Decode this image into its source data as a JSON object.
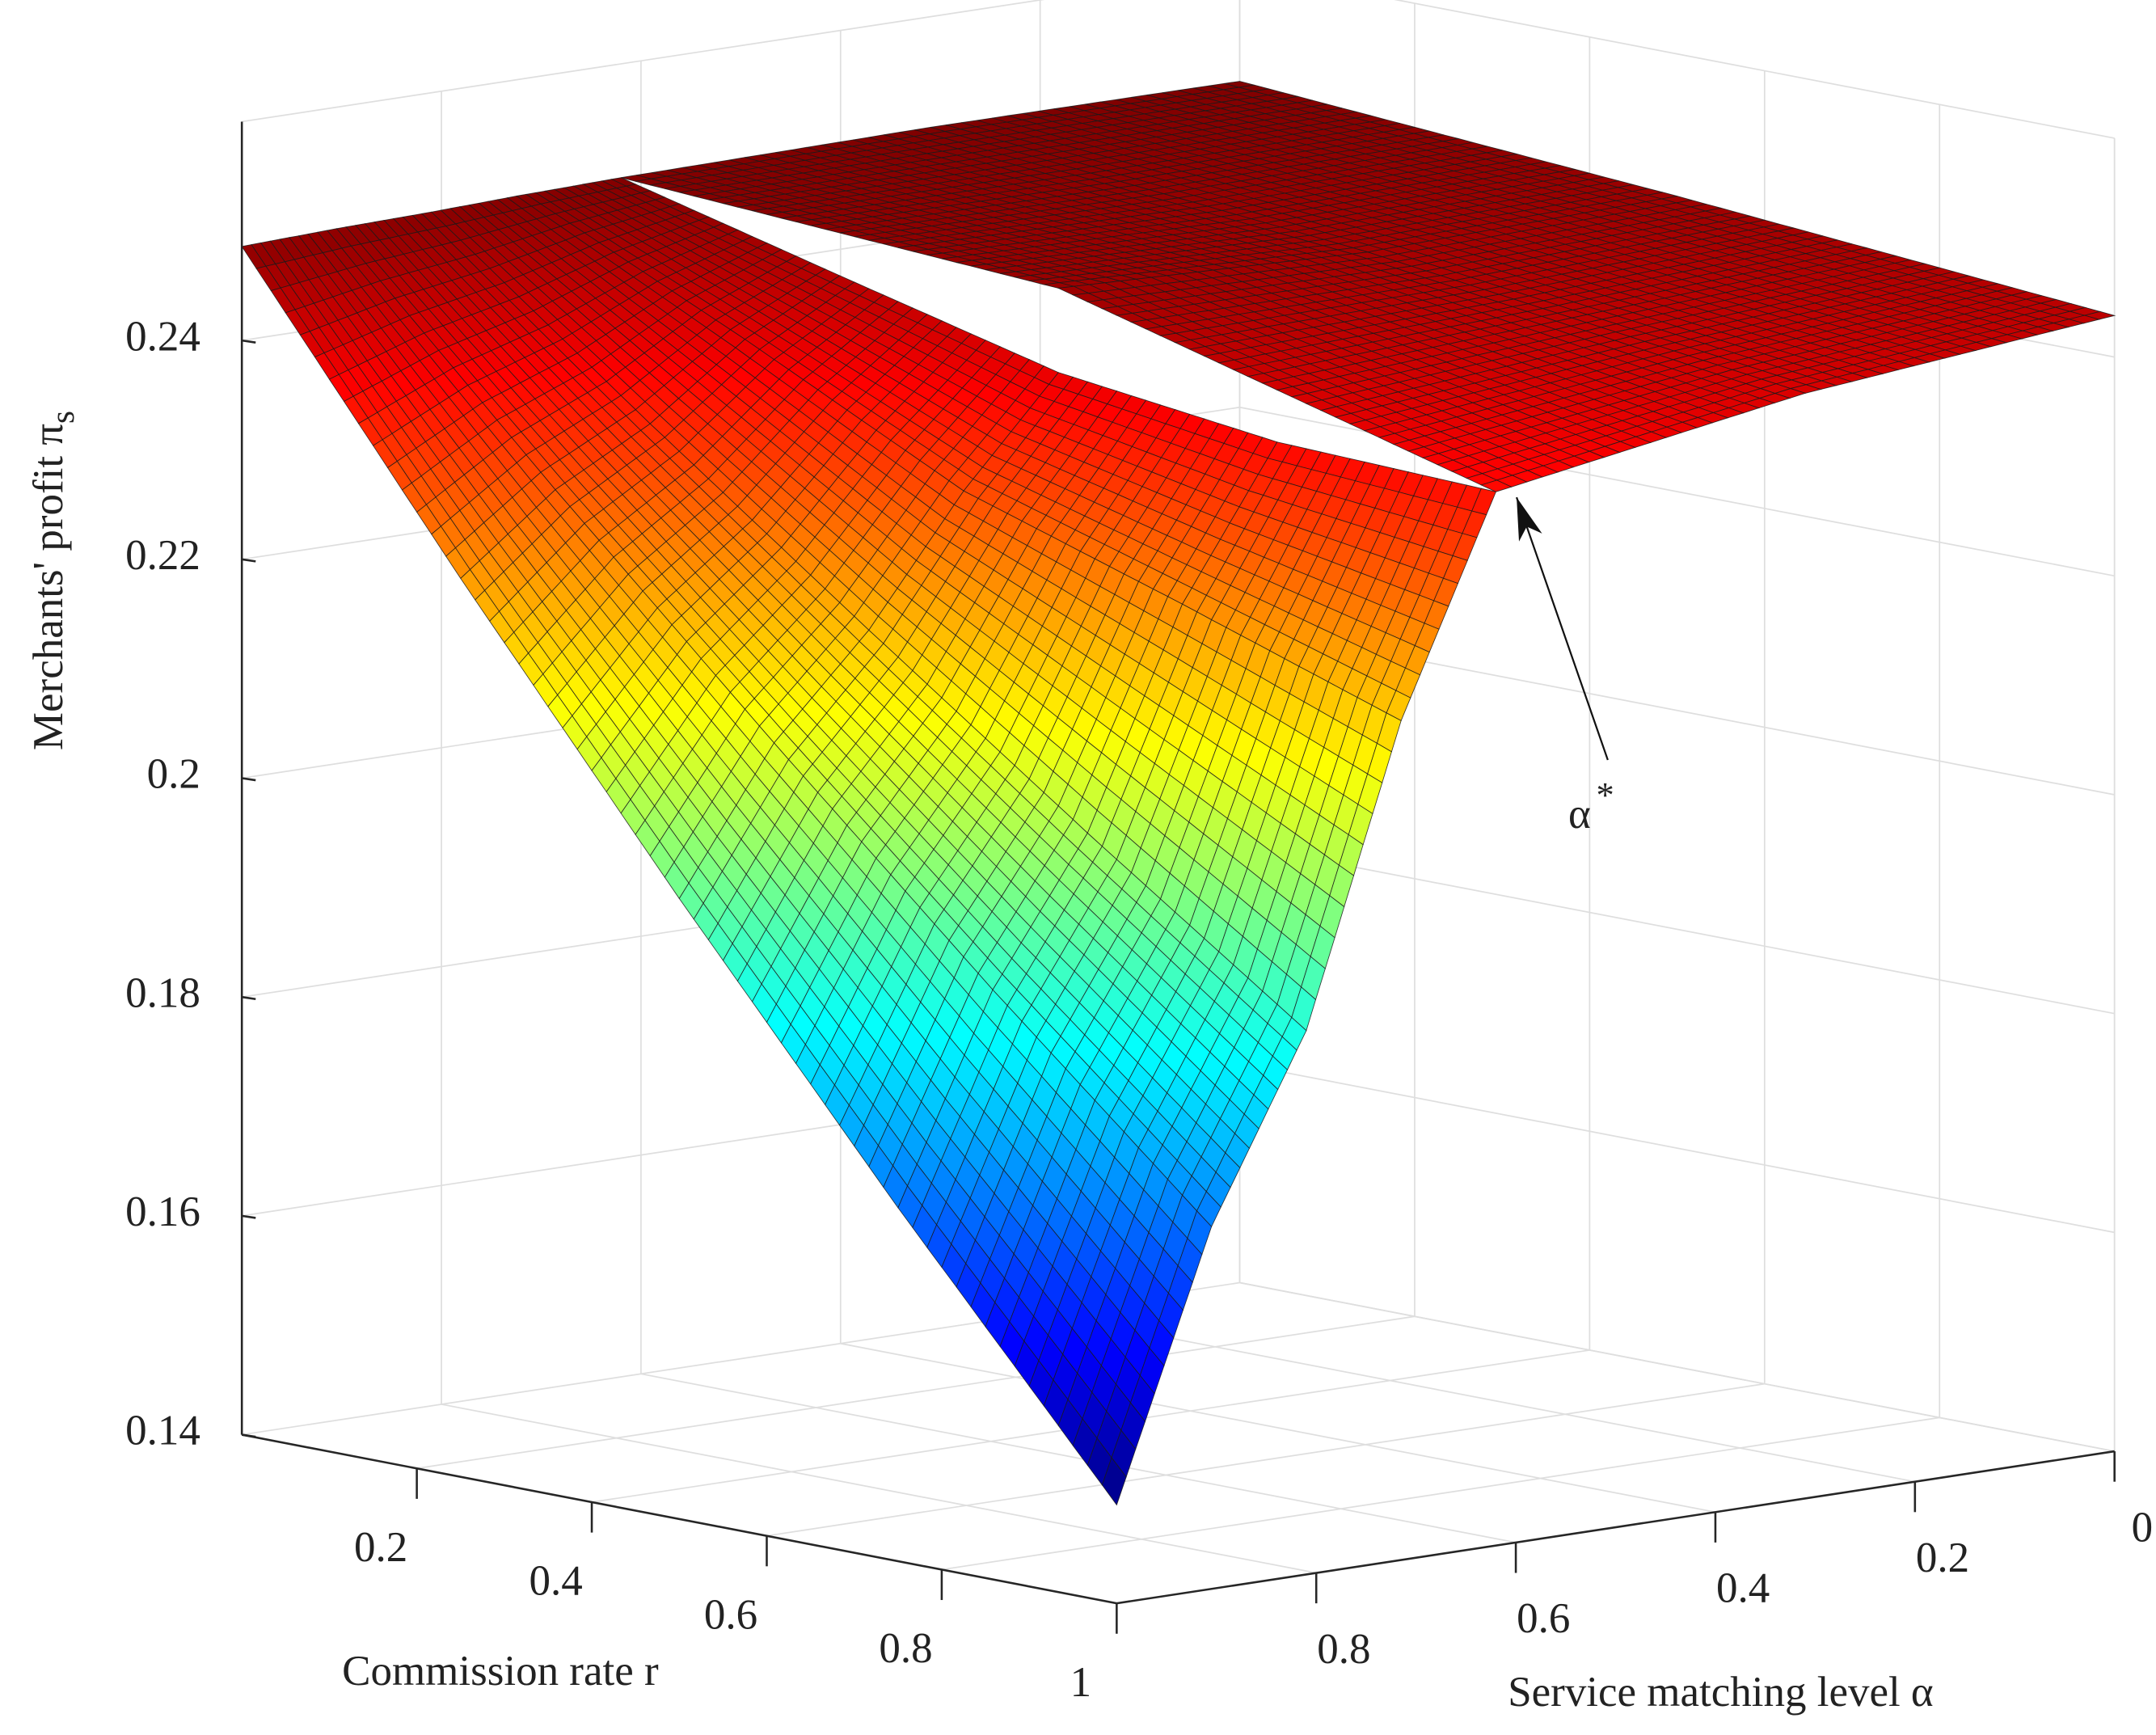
{
  "chart_data": {
    "type": "surface",
    "xlabel": "Commission rate  r",
    "ylabel": "Service matching level   α",
    "zlabel": "Merchants' profit  π",
    "zlabel_subscript": "s",
    "xlim": [
      0,
      1
    ],
    "ylim": [
      0,
      1
    ],
    "zlim": [
      0.14,
      0.26
    ],
    "xticks": [
      0.2,
      0.4,
      0.6,
      0.8,
      1
    ],
    "yticks": [
      0,
      0.2,
      0.4,
      0.6,
      0.8
    ],
    "zticks": [
      0.14,
      0.16,
      0.18,
      0.2,
      0.22,
      0.24
    ],
    "grid": true,
    "colormap": "jet",
    "surfaces": [
      {
        "x": [
          0,
          0.5,
          1
        ],
        "y": [
          0,
          0.31,
          0.62
        ],
        "z": [
          [
            0.2498,
            0.247,
            0.2438
          ],
          [
            0.2499,
            0.2462,
            0.241
          ],
          [
            0.2496,
            0.2472,
            0.2363
          ]
        ]
      },
      {
        "x": [
          0,
          0.25,
          0.5,
          0.75,
          1
        ],
        "y": [
          0.62,
          0.715,
          0.81,
          0.905,
          1
        ],
        "z": [
          [
            0.2496,
            0.2445,
            0.2395,
            0.237,
            0.2363
          ],
          [
            0.2494,
            0.24,
            0.23,
            0.2235,
            0.2167
          ],
          [
            0.2491,
            0.2336,
            0.2186,
            0.2039,
            0.1897
          ],
          [
            0.2489,
            0.2289,
            0.2096,
            0.1909,
            0.1731
          ],
          [
            0.2486,
            0.2221,
            0.1967,
            0.1723,
            0.149
          ]
        ]
      }
    ],
    "annotation": {
      "text": "α",
      "superscript": "*",
      "x": 1,
      "y": 0.62,
      "z": 0.2363
    }
  }
}
